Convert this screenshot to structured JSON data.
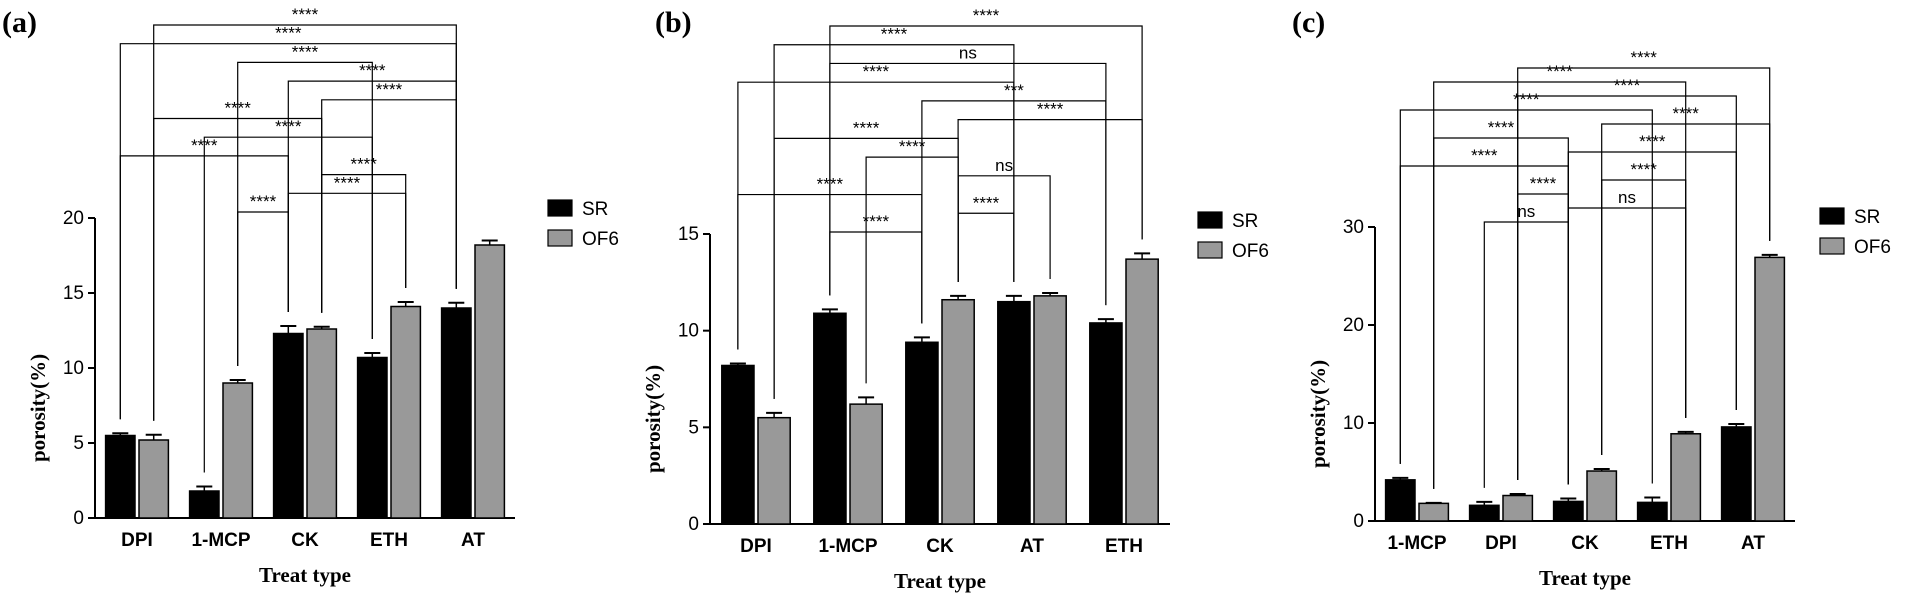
{
  "colors": {
    "SR": "#000000",
    "OF6": "#999999",
    "axis": "#000000"
  },
  "chart_data": [
    {
      "type": "bar",
      "panel": "(a)",
      "categories": [
        "DPI",
        "1-MCP",
        "CK",
        "ETH",
        "AT"
      ],
      "series": [
        {
          "name": "SR",
          "values": [
            5.5,
            1.8,
            12.3,
            10.7,
            14.0
          ],
          "errors": [
            0.15,
            0.3,
            0.5,
            0.3,
            0.35
          ]
        },
        {
          "name": "OF6",
          "values": [
            5.2,
            9.0,
            12.6,
            14.1,
            18.2
          ],
          "errors": [
            0.35,
            0.2,
            0.15,
            0.3,
            0.3
          ]
        }
      ],
      "ylabel": "porosity(%)",
      "xlabel": "Treat type",
      "ylim": [
        0,
        20
      ],
      "yticks": [
        0,
        5,
        10,
        15,
        20
      ],
      "comparisons": [
        {
          "from": [
            2,
            "SR"
          ],
          "to": [
            1,
            "OF6"
          ],
          "label": "****"
        },
        {
          "from": [
            2,
            "SR"
          ],
          "to": [
            3,
            "OF6"
          ],
          "label": "****"
        },
        {
          "from": [
            2,
            "OF6"
          ],
          "to": [
            3,
            "OF6"
          ],
          "label": "****"
        },
        {
          "from": [
            0,
            "SR"
          ],
          "to": [
            2,
            "SR"
          ],
          "label": "****"
        },
        {
          "from": [
            1,
            "SR"
          ],
          "to": [
            3,
            "SR"
          ],
          "label": "****"
        },
        {
          "from": [
            0,
            "OF6"
          ],
          "to": [
            2,
            "OF6"
          ],
          "label": "****"
        },
        {
          "from": [
            2,
            "OF6"
          ],
          "to": [
            4,
            "SR"
          ],
          "label": "****"
        },
        {
          "from": [
            2,
            "SR"
          ],
          "to": [
            4,
            "SR"
          ],
          "label": "****"
        },
        {
          "from": [
            1,
            "OF6"
          ],
          "to": [
            3,
            "SR"
          ],
          "label": "****"
        },
        {
          "from": [
            0,
            "SR"
          ],
          "to": [
            4,
            "SR"
          ],
          "label": "****"
        },
        {
          "from": [
            0,
            "OF6"
          ],
          "to": [
            4,
            "SR"
          ],
          "label": "****"
        }
      ]
    },
    {
      "type": "bar",
      "panel": "(b)",
      "categories": [
        "DPI",
        "1-MCP",
        "CK",
        "AT",
        "ETH"
      ],
      "series": [
        {
          "name": "SR",
          "values": [
            8.2,
            10.9,
            9.4,
            11.5,
            10.4
          ],
          "errors": [
            0.1,
            0.2,
            0.25,
            0.3,
            0.2
          ]
        },
        {
          "name": "OF6",
          "values": [
            5.5,
            6.2,
            11.6,
            11.8,
            13.7
          ],
          "errors": [
            0.25,
            0.35,
            0.2,
            0.15,
            0.3
          ]
        }
      ],
      "ylabel": "porosity(%)",
      "xlabel": "Treat type",
      "ylim": [
        0,
        15
      ],
      "yticks": [
        0,
        5,
        10,
        15
      ],
      "comparisons": [
        {
          "from": [
            1,
            "SR"
          ],
          "to": [
            2,
            "SR"
          ],
          "label": "****"
        },
        {
          "from": [
            2,
            "OF6"
          ],
          "to": [
            3,
            "SR"
          ],
          "label": "****"
        },
        {
          "from": [
            0,
            "SR"
          ],
          "to": [
            2,
            "SR"
          ],
          "label": "****"
        },
        {
          "from": [
            2,
            "OF6"
          ],
          "to": [
            3,
            "OF6"
          ],
          "label": "ns"
        },
        {
          "from": [
            1,
            "OF6"
          ],
          "to": [
            2,
            "OF6"
          ],
          "label": "****"
        },
        {
          "from": [
            0,
            "OF6"
          ],
          "to": [
            2,
            "OF6"
          ],
          "label": "****"
        },
        {
          "from": [
            2,
            "OF6"
          ],
          "to": [
            4,
            "OF6"
          ],
          "label": "****"
        },
        {
          "from": [
            2,
            "SR"
          ],
          "to": [
            4,
            "SR"
          ],
          "label": "***"
        },
        {
          "from": [
            0,
            "SR"
          ],
          "to": [
            3,
            "SR"
          ],
          "label": "****"
        },
        {
          "from": [
            1,
            "SR"
          ],
          "to": [
            4,
            "SR"
          ],
          "label": "ns"
        },
        {
          "from": [
            0,
            "OF6"
          ],
          "to": [
            3,
            "SR"
          ],
          "label": "****"
        },
        {
          "from": [
            1,
            "SR"
          ],
          "to": [
            4,
            "OF6"
          ],
          "label": "****"
        }
      ]
    },
    {
      "type": "bar",
      "panel": "(c)",
      "categories": [
        "1-MCP",
        "DPI",
        "CK",
        "ETH",
        "AT"
      ],
      "series": [
        {
          "name": "SR",
          "values": [
            4.2,
            1.6,
            2.0,
            1.9,
            9.6
          ],
          "errors": [
            0.2,
            0.35,
            0.3,
            0.5,
            0.3
          ]
        },
        {
          "name": "OF6",
          "values": [
            1.8,
            2.6,
            5.1,
            8.9,
            26.9
          ],
          "errors": [
            0.05,
            0.15,
            0.2,
            0.2,
            0.25
          ]
        }
      ],
      "ylabel": "porosity(%)",
      "xlabel": "Treat type",
      "ylim": [
        0,
        30
      ],
      "yticks": [
        0,
        10,
        20,
        30
      ],
      "comparisons": [
        {
          "from": [
            1,
            "SR"
          ],
          "to": [
            2,
            "SR"
          ],
          "label": "ns"
        },
        {
          "from": [
            2,
            "SR"
          ],
          "to": [
            3,
            "OF6"
          ],
          "label": "ns"
        },
        {
          "from": [
            1,
            "OF6"
          ],
          "to": [
            2,
            "SR"
          ],
          "label": "****"
        },
        {
          "from": [
            2,
            "OF6"
          ],
          "to": [
            3,
            "OF6"
          ],
          "label": "****"
        },
        {
          "from": [
            0,
            "SR"
          ],
          "to": [
            2,
            "SR"
          ],
          "label": "****"
        },
        {
          "from": [
            2,
            "SR"
          ],
          "to": [
            4,
            "SR"
          ],
          "label": "****"
        },
        {
          "from": [
            0,
            "OF6"
          ],
          "to": [
            2,
            "SR"
          ],
          "label": "****"
        },
        {
          "from": [
            2,
            "OF6"
          ],
          "to": [
            4,
            "OF6"
          ],
          "label": "****"
        },
        {
          "from": [
            0,
            "SR"
          ],
          "to": [
            3,
            "SR"
          ],
          "label": "****"
        },
        {
          "from": [
            1,
            "OF6"
          ],
          "to": [
            4,
            "SR"
          ],
          "label": "****"
        },
        {
          "from": [
            0,
            "OF6"
          ],
          "to": [
            3,
            "OF6"
          ],
          "label": "****"
        },
        {
          "from": [
            1,
            "OF6"
          ],
          "to": [
            4,
            "OF6"
          ],
          "label": "****"
        }
      ]
    }
  ]
}
